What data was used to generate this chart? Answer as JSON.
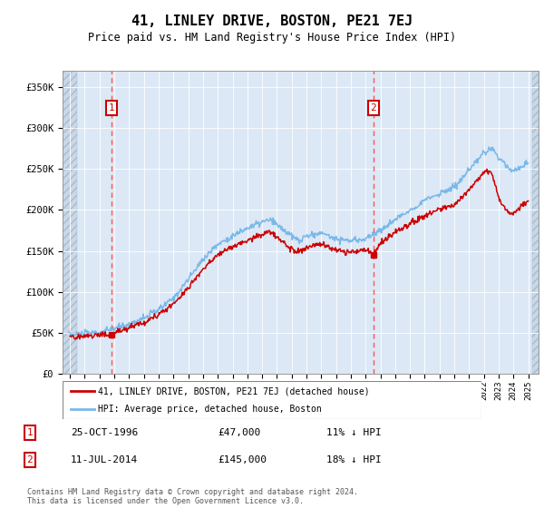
{
  "title": "41, LINLEY DRIVE, BOSTON, PE21 7EJ",
  "subtitle": "Price paid vs. HM Land Registry's House Price Index (HPI)",
  "ylabel_ticks": [
    "£0",
    "£50K",
    "£100K",
    "£150K",
    "£200K",
    "£250K",
    "£300K",
    "£350K"
  ],
  "ytick_values": [
    0,
    50000,
    100000,
    150000,
    200000,
    250000,
    300000,
    350000
  ],
  "ylim": [
    0,
    370000
  ],
  "xlim_start": 1993.5,
  "xlim_end": 2025.7,
  "hpi_color": "#7ab8e8",
  "price_color": "#cc0000",
  "dashed_line_color": "#ff5555",
  "background_plot": "#dce8f5",
  "sale1_x": 1996.81,
  "sale1_y": 47000,
  "sale2_x": 2014.53,
  "sale2_y": 145000,
  "legend_label_red": "41, LINLEY DRIVE, BOSTON, PE21 7EJ (detached house)",
  "legend_label_blue": "HPI: Average price, detached house, Boston",
  "table_row1": [
    "1",
    "25-OCT-1996",
    "£47,000",
    "11% ↓ HPI"
  ],
  "table_row2": [
    "2",
    "11-JUL-2014",
    "£145,000",
    "18% ↓ HPI"
  ],
  "footer": "Contains HM Land Registry data © Crown copyright and database right 2024.\nThis data is licensed under the Open Government Licence v3.0."
}
